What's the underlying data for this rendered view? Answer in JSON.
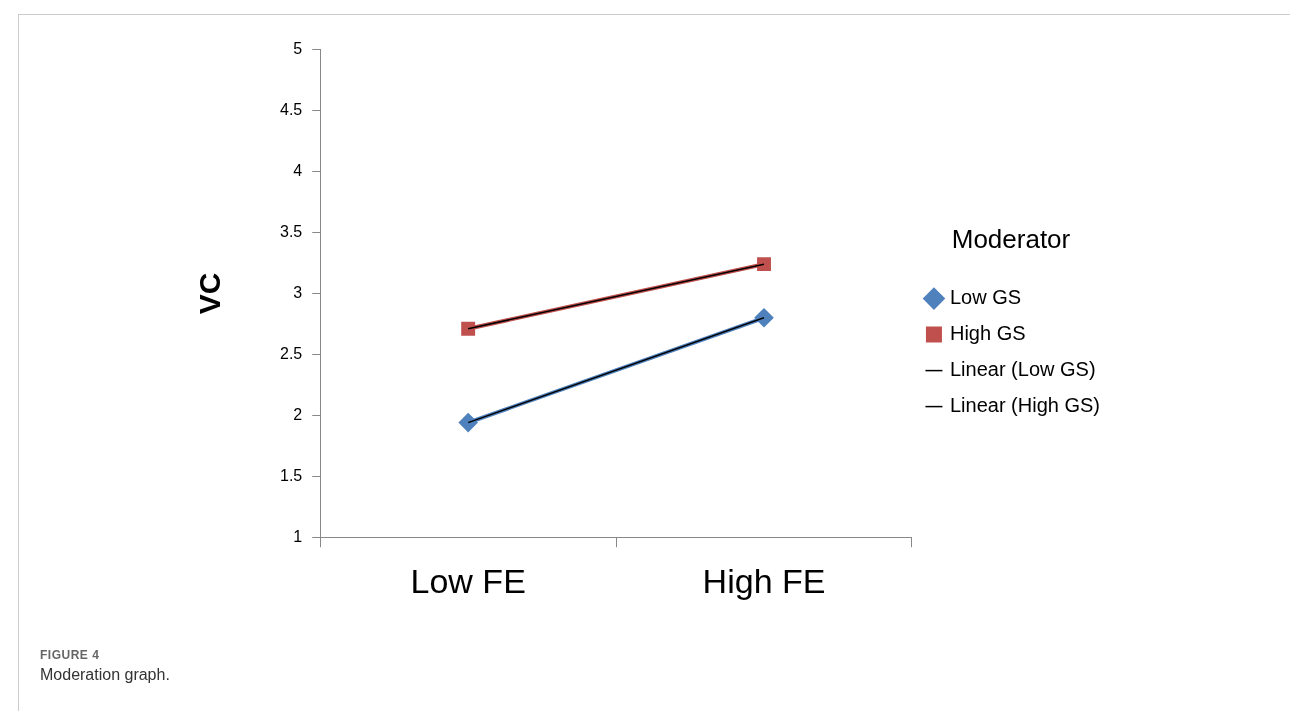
{
  "chart_data": {
    "type": "line",
    "ylabel": "VC",
    "legend_title": "Moderator",
    "categories": [
      "Low FE",
      "High FE"
    ],
    "series": [
      {
        "name": "Low GS",
        "color": "#4f81bd",
        "values": [
          1.94,
          2.8
        ],
        "marker": "diamond"
      },
      {
        "name": "High GS",
        "color": "#c0504d",
        "values": [
          2.71,
          3.24
        ],
        "marker": "square"
      },
      {
        "name": "Linear (Low GS)",
        "type": "line",
        "color": "#000000",
        "values": [
          1.94,
          2.8
        ],
        "marker": "none"
      },
      {
        "name": "Linear (High GS)",
        "type": "line",
        "color": "#000000",
        "values": [
          2.71,
          3.24
        ],
        "marker": "none"
      }
    ],
    "ylim": [
      1,
      5
    ],
    "yticks": [
      1,
      1.5,
      2,
      2.5,
      3,
      3.5,
      4,
      4.5,
      5
    ],
    "grid": false,
    "legend": "right",
    "line_style": "solid",
    "annotations": [
      "FIGURE 4",
      "Moderation graph."
    ]
  }
}
